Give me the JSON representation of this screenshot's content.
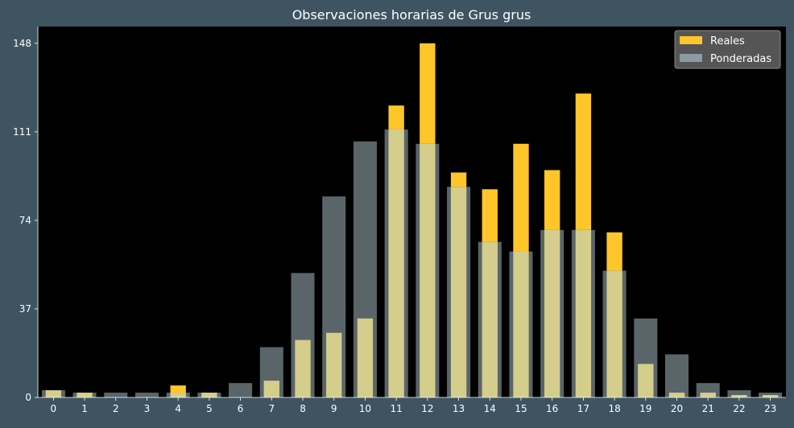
{
  "colors": {
    "background": "#3e5461",
    "plot_background": "#000000",
    "reales": "#ffc629",
    "ponderadas": "#8a9ba2",
    "text": "#ffffff"
  },
  "chart_data": {
    "type": "bar",
    "title": "Observaciones horarias de Grus grus",
    "xlabel": "",
    "ylabel": "",
    "categories": [
      "0",
      "1",
      "2",
      "3",
      "4",
      "5",
      "6",
      "7",
      "8",
      "9",
      "10",
      "11",
      "12",
      "13",
      "14",
      "15",
      "16",
      "17",
      "18",
      "19",
      "20",
      "21",
      "22",
      "23"
    ],
    "series": [
      {
        "name": "Reales",
        "values": [
          3,
          2,
          0,
          0,
          5,
          2,
          0,
          7,
          24,
          27,
          33,
          122,
          148,
          94,
          87,
          106,
          95,
          127,
          69,
          14,
          2,
          2,
          1,
          1
        ]
      },
      {
        "name": "Ponderadas",
        "values": [
          3,
          2,
          2,
          2,
          2,
          2,
          6,
          21,
          52,
          84,
          107,
          112,
          106,
          88,
          65,
          61,
          70,
          70,
          53,
          33,
          18,
          6,
          3,
          2
        ]
      }
    ],
    "ylim": [
      0,
      155
    ],
    "yticks": [
      "0",
      "37",
      "74",
      "111",
      "148"
    ],
    "legend_position": "top-right",
    "grid": false
  }
}
